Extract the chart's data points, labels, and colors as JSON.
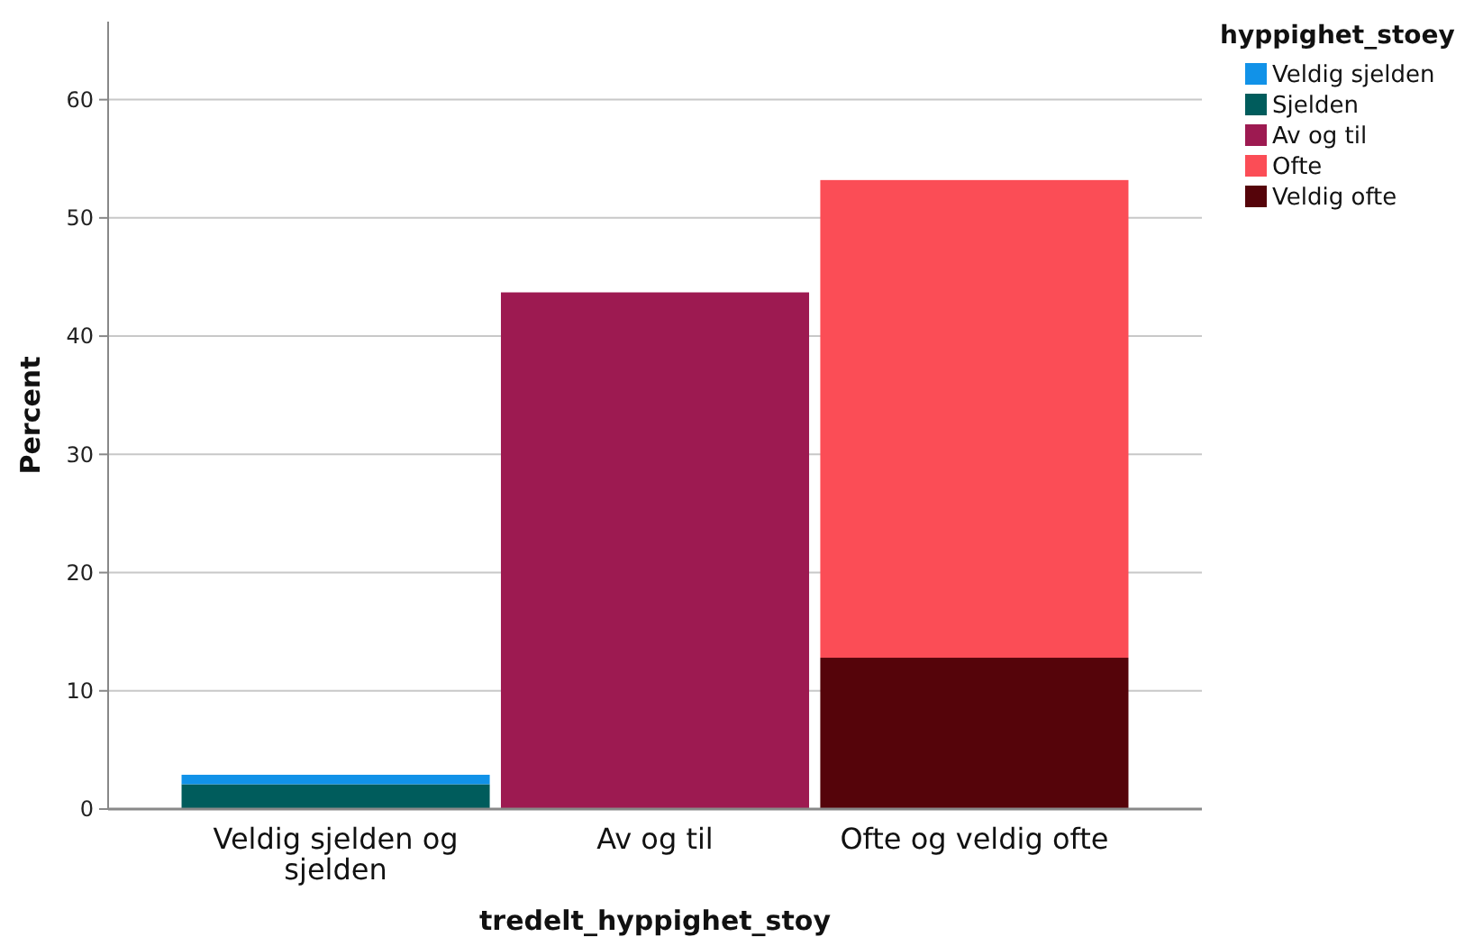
{
  "chart_data": {
    "type": "bar",
    "xlabel": "tredelt_hyppighet_stoy",
    "ylabel": "Percent",
    "legend_title": "hyppighet_stoey",
    "categories": [
      "Veldig sjelden og sjelden",
      "Av og til",
      "Ofte og veldig ofte"
    ],
    "stacked": true,
    "ylim": [
      0,
      66.6
    ],
    "yticks": [
      0,
      10,
      20,
      30,
      40,
      50,
      60
    ],
    "grid": "y",
    "legend": "top right",
    "series": [
      {
        "name": "Veldig ofte",
        "color": "#55040a",
        "values": [
          null,
          null,
          12.8
        ]
      },
      {
        "name": "Ofte",
        "color": "#fb4d56",
        "values": [
          null,
          null,
          40.4
        ]
      },
      {
        "name": "Av og til",
        "color": "#9d1a51",
        "values": [
          null,
          43.7,
          null
        ]
      },
      {
        "name": "Sjelden",
        "color": "#005c5c",
        "values": [
          2.1,
          null,
          null
        ]
      },
      {
        "name": "Veldig sjelden",
        "color": "#1192e8",
        "values": [
          0.8,
          null,
          null
        ]
      }
    ]
  }
}
